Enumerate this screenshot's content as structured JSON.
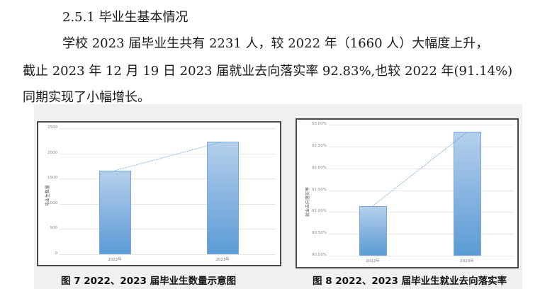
{
  "section": {
    "heading": "2.5.1 毕业生基本情况",
    "paragraph_lines": [
      "学校 2023 届毕业生共有 2231 人，较 2022 年（1660 人）大幅度上升，",
      "截止 2023 年 12 月 19 日 2023 届就业去向落实率 92.83%,也较 2022 年(91.14%)",
      "同期实现了小幅增长。"
    ]
  },
  "figures": [
    {
      "caption": "图 7 2022、2023 届毕业生数量示意图",
      "ylabel": "毕业生数量",
      "yticks": [
        "2500",
        "2000",
        "1500",
        "1000",
        "500",
        "0"
      ],
      "xticks": [
        "2022年",
        "2023年"
      ]
    },
    {
      "caption": "图 8 2022、2023 届毕业生就业去向落实率",
      "ylabel": "就业去向落实率",
      "yticks": [
        "93.00%",
        "92.50%",
        "92.00%",
        "91.50%",
        "91.00%",
        "90.50%",
        "90.00%"
      ],
      "xticks": [
        "2022年",
        "2023年"
      ]
    }
  ],
  "colors": {
    "bar_top": "#b5d0ec",
    "bar_bottom": "#5b9bd5",
    "trendline": "#5b9bd5",
    "page_gray": "#f0f0f0"
  },
  "chart_data": [
    {
      "type": "bar",
      "title": "图 7 2022、2023 届毕业生数量示意图",
      "categories": [
        "2022年",
        "2023年"
      ],
      "values": [
        1660,
        2231
      ],
      "xlabel": "",
      "ylabel": "毕业生数量",
      "ylim": [
        0,
        2500
      ],
      "yticks": [
        0,
        500,
        1000,
        1500,
        2000,
        2500
      ],
      "grid": true,
      "legend": "none",
      "trendline": "dotted linear through bar tops"
    },
    {
      "type": "bar",
      "title": "图 8 2022、2023 届毕业生就业去向落实率",
      "categories": [
        "2022年",
        "2023年"
      ],
      "values": [
        91.14,
        92.83
      ],
      "unit": "%",
      "xlabel": "",
      "ylabel": "就业去向落实率",
      "ylim": [
        90.0,
        93.0
      ],
      "yticks": [
        90.0,
        90.5,
        91.0,
        91.5,
        92.0,
        92.5,
        93.0
      ],
      "grid": true,
      "legend": "none",
      "trendline": "dotted linear through bar tops"
    }
  ]
}
